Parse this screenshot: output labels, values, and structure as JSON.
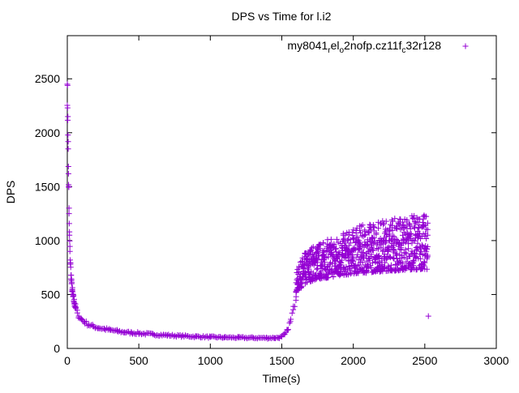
{
  "chart_data": {
    "type": "scatter",
    "title": "DPS vs Time for l.i2",
    "xlabel": "Time(s)",
    "ylabel": "DPS",
    "xlim": [
      0,
      3000
    ],
    "ylim": [
      0,
      2900
    ],
    "xticks": [
      0,
      500,
      1000,
      1500,
      2000,
      2500,
      3000
    ],
    "yticks": [
      0,
      500,
      1000,
      1500,
      2000,
      2500
    ],
    "grid": false,
    "legend_position": "top-right",
    "marker": "plus",
    "series": [
      {
        "name": "my8041_rel_o2nofp.cz11f_c32r128",
        "legend_parts": [
          {
            "text": "my8041",
            "sub": false
          },
          {
            "text": "r",
            "sub": true
          },
          {
            "text": "el",
            "sub": false
          },
          {
            "text": "o",
            "sub": true
          },
          {
            "text": "2nofp.cz11f",
            "sub": false
          },
          {
            "text": "c",
            "sub": true
          },
          {
            "text": "32r128",
            "sub": false
          }
        ],
        "color": "#9400d3",
        "x": [
          0,
          2,
          4,
          6,
          8,
          10,
          12,
          15,
          18,
          22,
          26,
          30,
          35,
          40,
          50,
          60,
          70,
          80,
          100,
          120,
          150,
          180,
          220,
          260,
          300,
          350,
          400,
          450,
          500,
          600,
          700,
          800,
          900,
          1000,
          1100,
          1200,
          1300,
          1400,
          1450,
          1480,
          1500,
          1520,
          1540,
          1560,
          1580,
          1600,
          1620,
          1650,
          1700,
          1750,
          1800,
          1850,
          1900,
          1950,
          2000,
          2050,
          2100,
          2150,
          2200,
          2250,
          2300,
          2350,
          2400,
          2450,
          2500,
          2520
        ],
        "y": [
          2450,
          2230,
          2150,
          1850,
          1620,
          1500,
          1250,
          1050,
          900,
          780,
          680,
          600,
          540,
          480,
          420,
          370,
          330,
          300,
          270,
          245,
          220,
          205,
          190,
          180,
          170,
          160,
          150,
          145,
          140,
          130,
          122,
          115,
          110,
          105,
          102,
          100,
          98,
          97,
          98,
          100,
          110,
          130,
          170,
          250,
          360,
          480,
          600,
          700,
          780,
          820,
          850,
          870,
          890,
          910,
          930,
          950,
          960,
          980,
          990,
          1000,
          1010,
          1015,
          1020,
          1030,
          1040,
          1050
        ],
        "band_x": [
          1600,
          1650,
          1700,
          1750,
          1800,
          1850,
          1900,
          1950,
          2000,
          2050,
          2100,
          2150,
          2200,
          2250,
          2300,
          2350,
          2400,
          2450,
          2500,
          2520
        ],
        "band_low": [
          520,
          580,
          620,
          640,
          650,
          660,
          670,
          680,
          690,
          700,
          700,
          710,
          710,
          720,
          720,
          720,
          730,
          730,
          730,
          730
        ],
        "band_high": [
          700,
          870,
          950,
          980,
          1000,
          1030,
          1050,
          1080,
          1110,
          1140,
          1160,
          1180,
          1200,
          1210,
          1220,
          1230,
          1240,
          1240,
          1240,
          1240
        ],
        "outliers": [
          {
            "x": 2525,
            "y": 300
          }
        ]
      }
    ]
  }
}
